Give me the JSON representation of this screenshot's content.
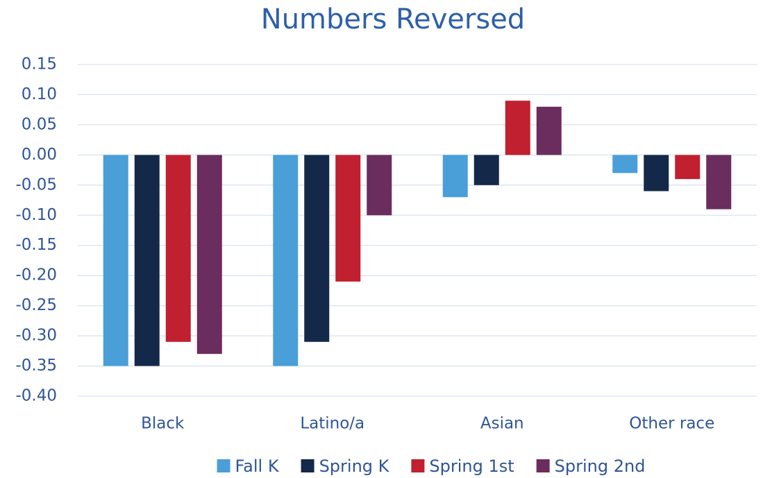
{
  "chart_data": {
    "type": "bar",
    "title": "Numbers Reversed",
    "categories": [
      "Black",
      "Latino/a",
      "Asian",
      "Other race"
    ],
    "series": [
      {
        "name": "Fall K",
        "color": "#4a9fd8",
        "values": [
          -0.35,
          -0.35,
          -0.07,
          -0.03
        ]
      },
      {
        "name": "Spring K",
        "color": "#14294a",
        "values": [
          -0.35,
          -0.31,
          -0.05,
          -0.06
        ]
      },
      {
        "name": "Spring 1st",
        "color": "#c0202f",
        "values": [
          -0.31,
          -0.21,
          0.09,
          -0.04
        ]
      },
      {
        "name": "Spring 2nd",
        "color": "#6b2c5e",
        "values": [
          -0.33,
          -0.1,
          0.08,
          -0.09
        ]
      }
    ],
    "ylim": [
      -0.4,
      0.15
    ],
    "yticks": [
      {
        "value": -0.4,
        "label": "-0.40"
      },
      -0.35,
      {
        "value": -0.3,
        "label": "-0.30"
      },
      -0.25,
      {
        "value": -0.2,
        "label": "-0.20"
      },
      -0.15,
      {
        "value": -0.1,
        "label": "-0.10"
      },
      -0.05,
      {
        "value": 0,
        "label": "0.00"
      },
      0.05,
      {
        "value": 0.1,
        "label": "0.10"
      },
      0.15
    ],
    "grid": true,
    "legend": "bottom"
  }
}
